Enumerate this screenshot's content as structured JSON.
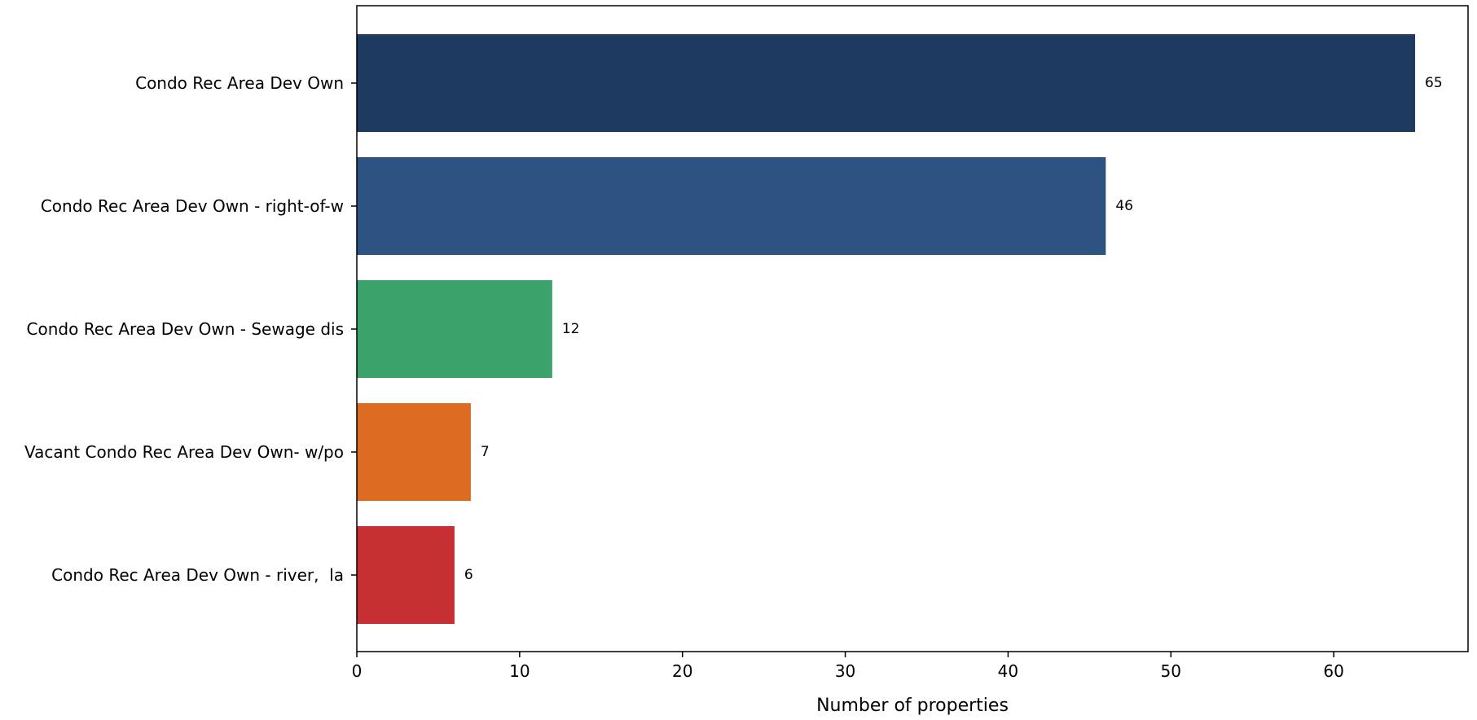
{
  "chart_data": {
    "type": "bar",
    "orientation": "horizontal",
    "title": "",
    "xlabel": "Number of properties",
    "ylabel": "",
    "xlim": [
      0,
      68.25
    ],
    "xticks": [
      0,
      10,
      20,
      30,
      40,
      50,
      60
    ],
    "grid": false,
    "categories": [
      "Condo Rec Area Dev Own",
      "Condo Rec Area Dev Own - right-of-w",
      "Condo Rec Area Dev Own - Sewage dis",
      "Vacant Condo Rec Area Dev Own- w/po",
      "Condo Rec Area Dev Own - river,  la"
    ],
    "values": [
      65,
      46,
      12,
      7,
      6
    ],
    "colors": [
      "#1f3a60",
      "#2d5382",
      "#3aa26a",
      "#dd6b22",
      "#c73033"
    ],
    "data_labels": [
      "65",
      "46",
      "12",
      "7",
      "6"
    ]
  }
}
